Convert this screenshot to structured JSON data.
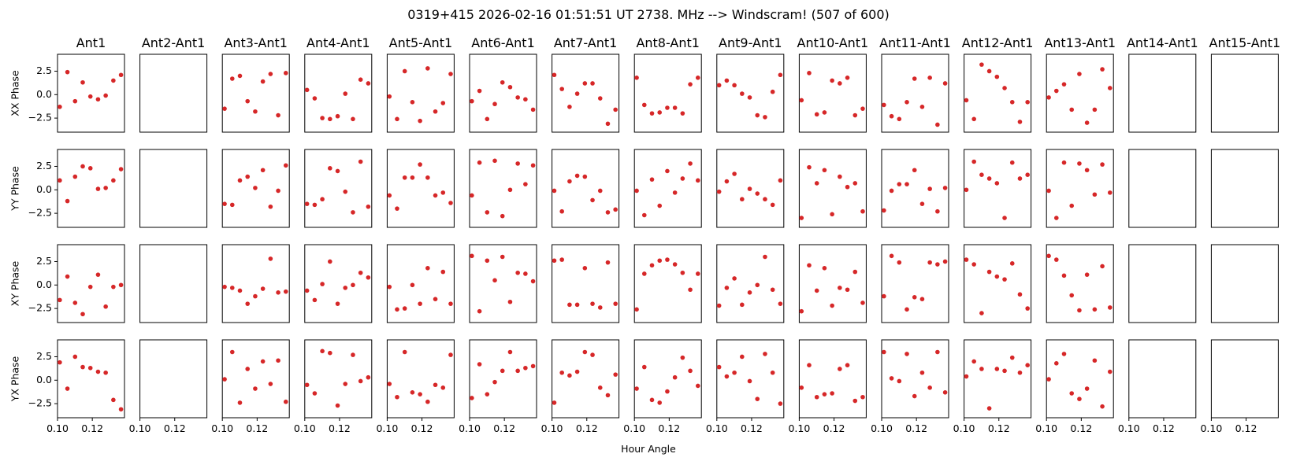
{
  "chart_data": {
    "type": "scatter",
    "title": "0319+415  2026-02-16 01:51:51 UT  2738. MHz  --> Windscram! (507 of 600)",
    "xlabel": "Hour Angle",
    "columns": [
      "Ant1",
      "Ant2-Ant1",
      "Ant3-Ant1",
      "Ant4-Ant1",
      "Ant5-Ant1",
      "Ant6-Ant1",
      "Ant7-Ant1",
      "Ant8-Ant1",
      "Ant9-Ant1",
      "Ant10-Ant1",
      "Ant11-Ant1",
      "Ant12-Ant1",
      "Ant13-Ant1",
      "Ant14-Ant1",
      "Ant15-Ant1"
    ],
    "rows": [
      "XX Phase",
      "YY Phase",
      "XY Phase",
      "YX Phase"
    ],
    "xlim": [
      0.1,
      0.1385
    ],
    "ylim": [
      -4.0,
      4.3
    ],
    "xticks": [
      0.1,
      0.12
    ],
    "xtick_labels": [
      "0.10",
      "0.12"
    ],
    "yticks": [
      2.5,
      0.0,
      -2.5
    ],
    "ytick_labels": [
      "2.5",
      "0.0",
      "−2.5"
    ],
    "color": "#d62728",
    "x": [
      0.1013,
      0.1057,
      0.1101,
      0.1145,
      0.1189,
      0.1233,
      0.1277,
      0.1321,
      0.1365
    ],
    "series": [
      [
        [
          -1.3,
          2.4,
          -0.7,
          1.3,
          -0.2,
          -0.5,
          -0.1,
          1.5,
          2.1
        ],
        null,
        [
          -1.5,
          1.7,
          2.0,
          -0.7,
          -1.8,
          1.4,
          2.2,
          -2.2,
          2.3
        ],
        [
          0.5,
          -0.4,
          -2.5,
          -2.6,
          -2.3,
          0.1,
          -2.6,
          1.6,
          1.2
        ],
        [
          -0.2,
          -2.6,
          2.5,
          -0.8,
          -2.8,
          2.8,
          -1.8,
          -0.9,
          2.2
        ],
        [
          -0.7,
          0.4,
          -2.6,
          -1.0,
          1.3,
          0.8,
          -0.3,
          -0.5,
          -1.6
        ],
        [
          2.1,
          0.6,
          -1.3,
          0.1,
          1.2,
          1.2,
          -0.4,
          -3.1,
          -1.6
        ],
        [
          1.8,
          -1.1,
          -2.0,
          -1.9,
          -1.4,
          -1.4,
          -2.0,
          1.1,
          1.8
        ],
        [
          1.0,
          1.5,
          1.0,
          0.1,
          -0.3,
          -2.2,
          -2.4,
          0.3,
          2.1
        ],
        [
          -0.6,
          2.3,
          -2.1,
          -1.9,
          1.5,
          1.2,
          1.8,
          -2.2,
          -1.5
        ],
        [
          -1.1,
          -2.3,
          -2.6,
          -0.8,
          1.7,
          -1.3,
          1.8,
          -3.2,
          1.2
        ],
        [
          -0.6,
          -2.6,
          3.2,
          2.5,
          1.9,
          0.7,
          -0.8,
          -2.9,
          -0.8
        ],
        [
          -0.3,
          0.4,
          1.1,
          -1.6,
          2.2,
          -3.0,
          -1.6,
          2.7,
          0.7
        ],
        null,
        null
      ],
      [
        [
          1.0,
          -1.2,
          1.4,
          2.5,
          2.3,
          0.1,
          0.2,
          1.0,
          2.2
        ],
        null,
        [
          -1.5,
          -1.6,
          1.0,
          1.4,
          0.2,
          2.1,
          -1.8,
          -0.1,
          2.6
        ],
        [
          -1.5,
          -1.6,
          -1.0,
          2.3,
          2.0,
          -0.2,
          -2.4,
          3.0,
          -1.8
        ],
        [
          -0.6,
          -2.0,
          1.3,
          1.3,
          2.7,
          1.3,
          -0.6,
          -0.3,
          -1.4
        ],
        [
          -0.6,
          2.9,
          -2.4,
          3.1,
          -2.8,
          0.0,
          2.8,
          0.6,
          2.6
        ],
        [
          -0.1,
          -2.3,
          0.9,
          1.5,
          1.4,
          -1.1,
          -0.1,
          -2.4,
          -2.1
        ],
        [
          -0.1,
          -2.7,
          1.1,
          -1.7,
          2.0,
          -0.3,
          1.2,
          2.8,
          1.0
        ],
        [
          -0.2,
          0.9,
          1.7,
          -1.0,
          0.1,
          -0.4,
          -1.0,
          -1.6,
          1.0
        ],
        [
          -3.0,
          2.4,
          0.7,
          2.1,
          -2.6,
          1.4,
          0.3,
          0.7,
          -2.3
        ],
        [
          -2.2,
          -0.1,
          0.6,
          0.6,
          2.1,
          -1.5,
          0.1,
          -2.3,
          0.2
        ],
        [
          0.0,
          3.0,
          1.6,
          1.2,
          0.7,
          -3.0,
          2.9,
          1.2,
          1.6
        ],
        [
          -0.1,
          -3.0,
          2.9,
          -1.7,
          2.8,
          2.1,
          -0.5,
          2.7,
          -0.3
        ],
        null,
        null
      ],
      [
        [
          -1.6,
          0.9,
          -1.9,
          -3.1,
          -0.2,
          1.1,
          -2.3,
          -0.2,
          0.0
        ],
        null,
        [
          -0.2,
          -0.3,
          -0.6,
          -2.0,
          -1.2,
          -0.4,
          2.8,
          -0.8,
          -0.7
        ],
        [
          -0.6,
          -1.6,
          0.1,
          2.5,
          -2.0,
          -0.3,
          0.0,
          1.3,
          0.8
        ],
        [
          -0.2,
          -2.6,
          -2.5,
          0.0,
          -2.0,
          1.8,
          -1.5,
          1.4,
          -2.0
        ],
        [
          3.1,
          -2.8,
          2.6,
          0.5,
          3.0,
          -1.8,
          1.3,
          1.2,
          0.4
        ],
        [
          2.6,
          2.7,
          -2.1,
          -2.1,
          1.8,
          -2.0,
          -2.4,
          2.4,
          -2.0
        ],
        [
          -2.6,
          1.2,
          2.1,
          2.6,
          2.7,
          2.2,
          1.3,
          -0.5,
          1.2
        ],
        [
          -2.2,
          -0.3,
          0.7,
          -2.1,
          -0.8,
          0.0,
          3.0,
          -0.5,
          -2.0
        ],
        [
          -2.8,
          2.1,
          -0.6,
          1.8,
          -2.2,
          -0.3,
          -0.5,
          1.4,
          -1.9
        ],
        [
          -1.2,
          3.1,
          2.4,
          -2.6,
          -1.3,
          -1.5,
          2.4,
          2.2,
          2.5
        ],
        [
          2.7,
          2.2,
          -3.0,
          1.4,
          0.9,
          0.6,
          2.3,
          -1.0,
          -2.5
        ],
        [
          3.1,
          2.7,
          1.0,
          -1.1,
          -2.7,
          1.1,
          -2.6,
          2.0,
          -2.4
        ],
        null,
        null
      ],
      [
        [
          1.9,
          -0.9,
          2.5,
          1.4,
          1.3,
          0.9,
          0.8,
          -2.1,
          -3.1
        ],
        null,
        [
          0.1,
          3.0,
          -2.4,
          1.2,
          -0.9,
          2.0,
          -0.4,
          2.1,
          -2.3
        ],
        [
          -0.5,
          -1.4,
          3.1,
          2.9,
          -2.7,
          -0.4,
          2.7,
          -0.1,
          0.3
        ],
        [
          -0.4,
          -1.8,
          3.0,
          -1.3,
          -1.5,
          -2.3,
          -0.5,
          -0.8,
          2.7
        ],
        [
          -1.9,
          1.7,
          -1.5,
          -0.2,
          1.0,
          3.0,
          1.0,
          1.3,
          1.5
        ],
        [
          -2.4,
          0.8,
          0.5,
          0.9,
          3.0,
          2.7,
          -0.8,
          -1.6,
          0.6
        ],
        [
          -0.9,
          1.4,
          -2.1,
          -2.4,
          -1.2,
          0.3,
          2.4,
          1.0,
          -0.6
        ],
        [
          1.4,
          0.4,
          0.8,
          2.5,
          -0.1,
          -2.0,
          2.8,
          0.8,
          -2.5
        ],
        [
          -0.8,
          1.6,
          -1.8,
          -1.5,
          -1.4,
          1.2,
          1.6,
          -2.2,
          -1.8
        ],
        [
          3.0,
          0.2,
          -0.1,
          2.8,
          -1.7,
          0.8,
          -0.8,
          3.0,
          -1.3
        ],
        [
          0.4,
          2.0,
          1.2,
          -3.0,
          1.2,
          1.0,
          2.4,
          0.8,
          1.6
        ],
        [
          0.1,
          1.8,
          2.8,
          -1.4,
          -2.0,
          -0.9,
          2.1,
          -2.8,
          0.9
        ],
        null,
        null
      ]
    ]
  }
}
